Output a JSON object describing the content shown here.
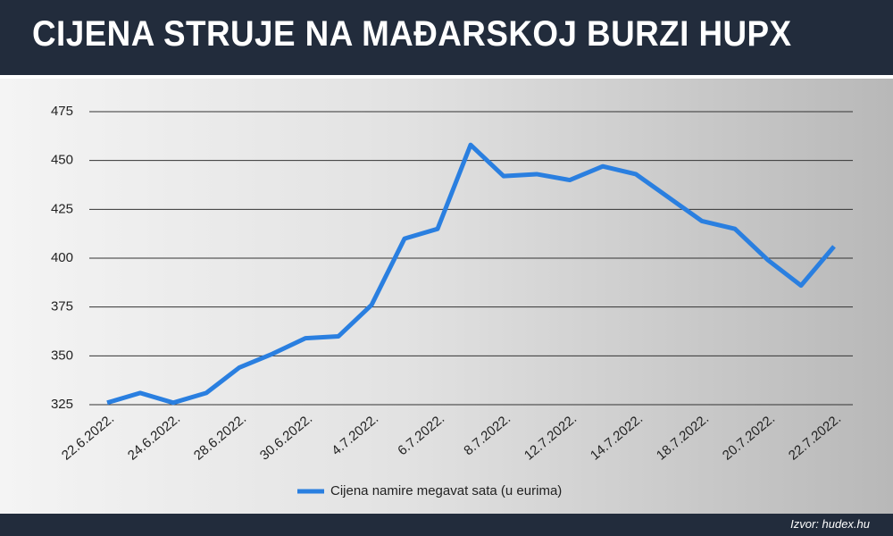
{
  "header": {
    "title": "CIJENA STRUJE NA MAĐARSKOJ BURZI HUPX"
  },
  "footer": {
    "source": "Izvor: hudex.hu"
  },
  "chart_data": {
    "type": "line",
    "categories": [
      "22.6.2022.",
      null,
      "24.6.2022.",
      null,
      "28.6.2022.",
      null,
      "30.6.2022.",
      null,
      "4.7.2022.",
      null,
      "6.7.2022.",
      null,
      "8.7.2022.",
      null,
      "12.7.2022.",
      null,
      "14.7.2022.",
      null,
      "18.7.2022.",
      null,
      "20.7.2022.",
      null,
      "22.7.2022."
    ],
    "series": [
      {
        "name": "Cijena namire megavat sata (u eurima)",
        "color": "#2a7fe0",
        "values": [
          326,
          331,
          326,
          331,
          344,
          351,
          359,
          360,
          376,
          410,
          415,
          458,
          442,
          443,
          440,
          447,
          443,
          431,
          419,
          415,
          399,
          386,
          406
        ]
      }
    ],
    "ylim": [
      325,
      475
    ],
    "yticks": [
      325,
      350,
      375,
      400,
      425,
      450,
      475
    ],
    "grid": true
  }
}
